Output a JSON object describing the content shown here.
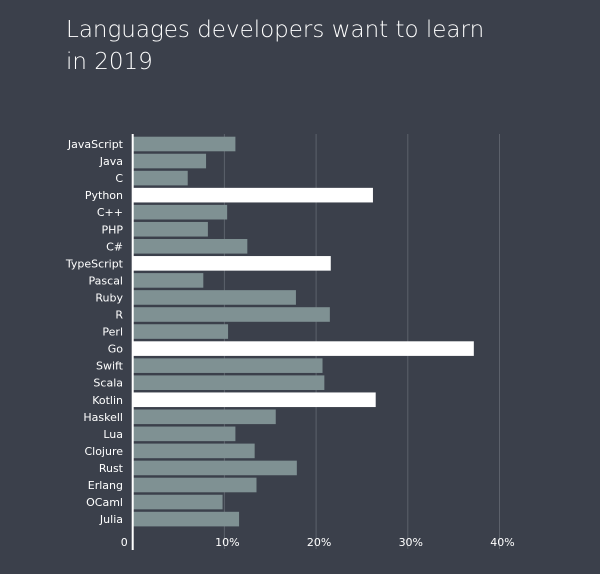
{
  "chart_data": {
    "type": "bar",
    "orientation": "horizontal",
    "title": "Languages developers want to learn in 2019",
    "categories": [
      "JavaScript",
      "Java",
      "C",
      "Python",
      "C++",
      "PHP",
      "C#",
      "TypeScript",
      "Pascal",
      "Ruby",
      "R",
      "Perl",
      "Go",
      "Swift",
      "Scala",
      "Kotlin",
      "Haskell",
      "Lua",
      "Clojure",
      "Rust",
      "Erlang",
      "OCaml",
      "Julia"
    ],
    "values": [
      11.2,
      8.0,
      6.0,
      26.2,
      10.3,
      8.2,
      12.5,
      21.6,
      7.7,
      17.8,
      21.5,
      10.4,
      37.2,
      20.7,
      20.9,
      26.5,
      15.6,
      11.2,
      13.3,
      17.9,
      13.5,
      9.8,
      11.6
    ],
    "highlighted": [
      "Python",
      "TypeScript",
      "Go",
      "Kotlin"
    ],
    "xlim": [
      0,
      40
    ],
    "xticks": [
      0,
      10,
      20,
      30,
      40
    ],
    "xtick_labels": [
      "0",
      "10%",
      "20%",
      "30%",
      "40%"
    ],
    "grid": "vertical",
    "colors": {
      "background": "#3b404b",
      "bar": "#7f9193",
      "highlight": "#ffffff",
      "grid": "#5c616b"
    }
  }
}
